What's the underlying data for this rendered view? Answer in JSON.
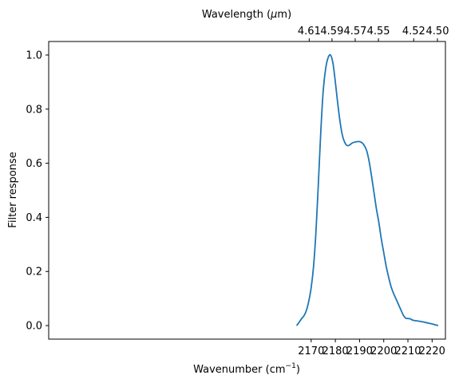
{
  "chart_data": {
    "type": "line",
    "xlabel": "Wavenumber (cm",
    "xlabel_sup": "−1",
    "xlabel_tail": ")",
    "ylabel": "Filter response",
    "x2label_pre": "Wavelength (",
    "x2label_mu": "μ",
    "x2label_post": "m)",
    "xlim": [
      2061.5,
      2225.5
    ],
    "ylim": [
      -0.05,
      1.05
    ],
    "xticks": [
      2170,
      2180,
      2190,
      2200,
      2210,
      2220
    ],
    "yticks": [
      0.0,
      0.2,
      0.4,
      0.6,
      0.8,
      1.0
    ],
    "ytick_labels": [
      "0.0",
      "0.2",
      "0.4",
      "0.6",
      "0.8",
      "1.0"
    ],
    "x2ticks": [
      {
        "label": "4.61",
        "wavenumber": 2169.2
      },
      {
        "label": "4.59",
        "wavenumber": 2178.6
      },
      {
        "label": "4.57",
        "wavenumber": 2188.2
      },
      {
        "label": "4.55",
        "wavenumber": 2197.8
      },
      {
        "label": "4.52",
        "wavenumber": 2212.4
      },
      {
        "label": "4.50",
        "wavenumber": 2222.2
      }
    ],
    "grid": false,
    "color": "#1f77b4",
    "series": [
      {
        "x": [
          2164,
          2165,
          2166,
          2167,
          2168,
          2169,
          2170,
          2171,
          2172,
          2173,
          2174,
          2175,
          2176,
          2177,
          2178,
          2179,
          2180,
          2181,
          2182,
          2183,
          2184,
          2185,
          2186,
          2187,
          2188,
          2189,
          2190,
          2191,
          2192,
          2193,
          2194,
          2195,
          2196,
          2197,
          2198,
          2199,
          2200,
          2201,
          2202,
          2203,
          2204,
          2205,
          2206,
          2207,
          2208,
          2209,
          2210,
          2211,
          2212,
          2214,
          2216,
          2218,
          2220,
          2222.5
        ],
        "y": [
          0.0,
          0.012,
          0.025,
          0.036,
          0.055,
          0.09,
          0.14,
          0.22,
          0.35,
          0.53,
          0.72,
          0.87,
          0.95,
          0.99,
          1.0,
          0.97,
          0.9,
          0.82,
          0.75,
          0.7,
          0.675,
          0.665,
          0.668,
          0.675,
          0.678,
          0.68,
          0.68,
          0.676,
          0.665,
          0.645,
          0.605,
          0.55,
          0.49,
          0.43,
          0.38,
          0.32,
          0.27,
          0.22,
          0.18,
          0.145,
          0.12,
          0.1,
          0.08,
          0.06,
          0.04,
          0.028,
          0.026,
          0.025,
          0.02,
          0.017,
          0.014,
          0.01,
          0.006,
          0.0
        ]
      }
    ]
  }
}
